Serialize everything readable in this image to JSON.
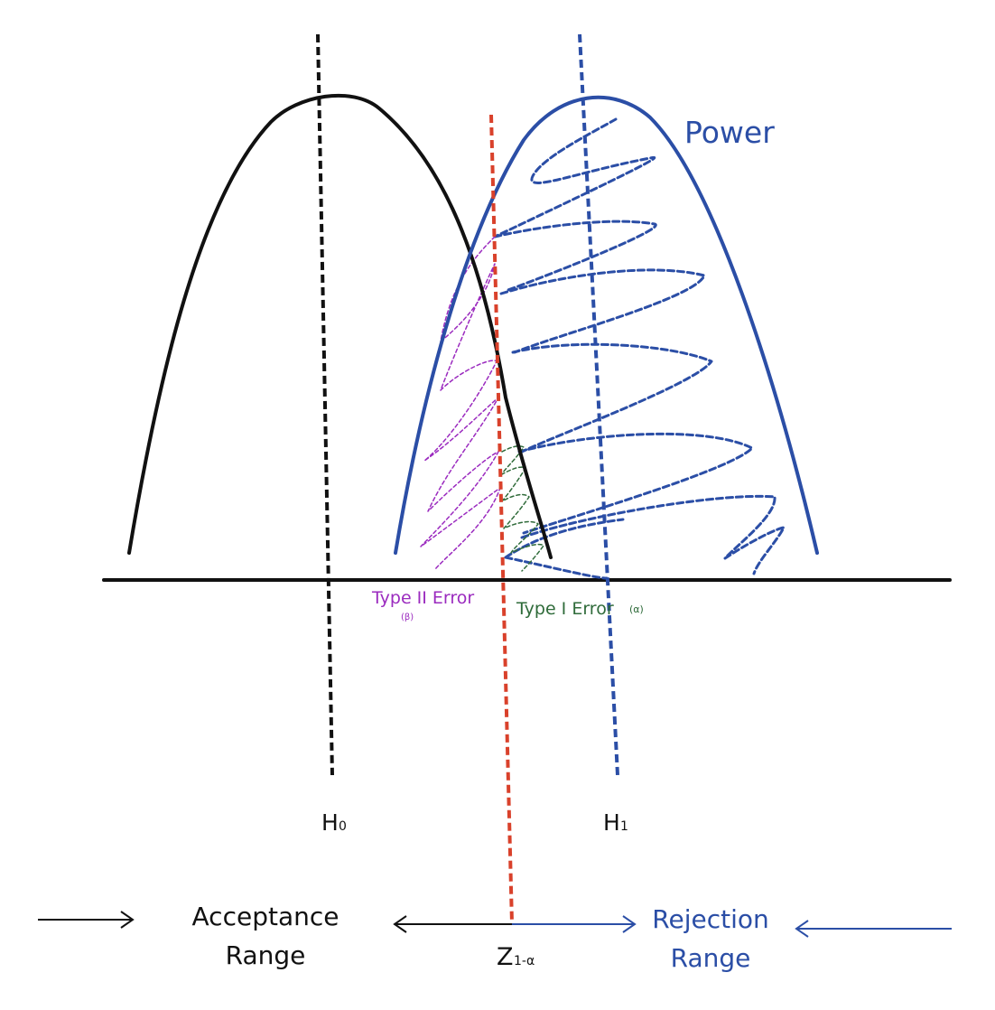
{
  "labels": {
    "power": "Power",
    "type_two_error": "Type II Error",
    "beta": "(β)",
    "type_one_error": "Type I Error",
    "alpha": "(α)",
    "h0": "H",
    "h0_sub": "0",
    "h1": "H",
    "h1_sub": "1",
    "z": "Z",
    "z_sub": "1-α",
    "acceptance_line1": "Acceptance",
    "acceptance_line2": "Range",
    "rejection_line1": "Rejection",
    "rejection_line2": "Range"
  },
  "colors": {
    "null_curve": "#111111",
    "alt_curve": "#2b4ea6",
    "critical_line": "#d9412b",
    "type_two_hatch": "#9b2bbf",
    "type_one_hatch": "#2f6b3a",
    "axis": "#111111"
  }
}
